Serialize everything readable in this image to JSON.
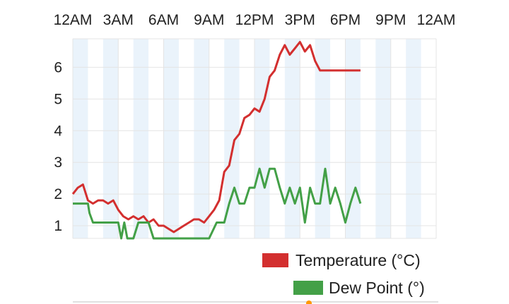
{
  "chart_data": {
    "type": "line",
    "x_ticks": [
      "12AM",
      "3AM",
      "6AM",
      "9AM",
      "12PM",
      "3PM",
      "6PM",
      "9PM",
      "12AM"
    ],
    "y_ticks": [
      1,
      2,
      3,
      4,
      5,
      6
    ],
    "xlim": [
      0,
      24
    ],
    "ylim": [
      0.6,
      6.9
    ],
    "grid": true,
    "legend_position": "bottom-right",
    "series": [
      {
        "name": "Temperature (°C)",
        "color": "#d32f2f",
        "x": [
          0,
          0.33,
          0.67,
          1,
          1.33,
          1.67,
          2,
          2.33,
          2.67,
          3,
          3.33,
          3.67,
          4,
          4.33,
          4.67,
          5,
          5.33,
          5.67,
          6,
          6.33,
          6.67,
          7,
          7.33,
          7.67,
          8,
          8.33,
          8.67,
          9,
          9.33,
          9.67,
          10,
          10.33,
          10.67,
          11,
          11.33,
          11.67,
          12,
          12.33,
          12.67,
          13,
          13.33,
          13.67,
          14,
          14.33,
          14.67,
          15,
          15.33,
          15.67,
          16,
          16.33,
          16.67,
          17,
          17.33,
          17.67,
          18,
          18.33,
          18.67,
          19
        ],
        "y": [
          2.0,
          2.2,
          2.3,
          1.8,
          1.7,
          1.8,
          1.8,
          1.7,
          1.8,
          1.5,
          1.3,
          1.2,
          1.3,
          1.2,
          1.3,
          1.1,
          1.2,
          1.0,
          1.0,
          0.9,
          0.8,
          0.9,
          1.0,
          1.1,
          1.2,
          1.2,
          1.1,
          1.3,
          1.5,
          1.8,
          2.7,
          2.9,
          3.7,
          3.9,
          4.4,
          4.5,
          4.7,
          4.6,
          5.0,
          5.7,
          5.9,
          6.4,
          6.7,
          6.4,
          6.6,
          6.8,
          6.5,
          6.7,
          6.2,
          5.9,
          5.9,
          5.9,
          5.9,
          5.9,
          5.9,
          5.9,
          5.9,
          5.9
        ]
      },
      {
        "name": "Dew Point (°)",
        "color": "#43a047",
        "x": [
          0,
          1,
          1.1,
          1.33,
          2,
          2.67,
          3,
          3.2,
          3.4,
          3.6,
          4,
          4.33,
          4.67,
          5,
          5.33,
          5.67,
          6,
          6.5,
          7,
          7.5,
          8,
          8.5,
          9,
          9.5,
          10,
          10.33,
          10.67,
          11,
          11.33,
          11.67,
          12,
          12.33,
          12.67,
          13,
          13.33,
          13.67,
          14,
          14.33,
          14.67,
          15,
          15.33,
          15.67,
          16,
          16.33,
          16.67,
          17,
          17.33,
          17.67,
          18,
          18.33,
          18.67,
          19
        ],
        "y": [
          1.7,
          1.7,
          1.4,
          1.1,
          1.1,
          1.1,
          1.1,
          0.6,
          1.1,
          0.6,
          0.6,
          1.1,
          1.1,
          1.1,
          0.6,
          0.6,
          0.6,
          0.6,
          0.6,
          0.6,
          0.6,
          0.6,
          0.6,
          1.1,
          1.1,
          1.7,
          2.2,
          1.7,
          1.7,
          2.2,
          2.2,
          2.8,
          2.2,
          2.8,
          2.8,
          2.2,
          1.7,
          2.2,
          1.7,
          2.2,
          1.1,
          2.2,
          1.7,
          1.7,
          2.8,
          1.7,
          2.2,
          1.7,
          1.1,
          1.7,
          2.2,
          1.7
        ]
      }
    ]
  }
}
